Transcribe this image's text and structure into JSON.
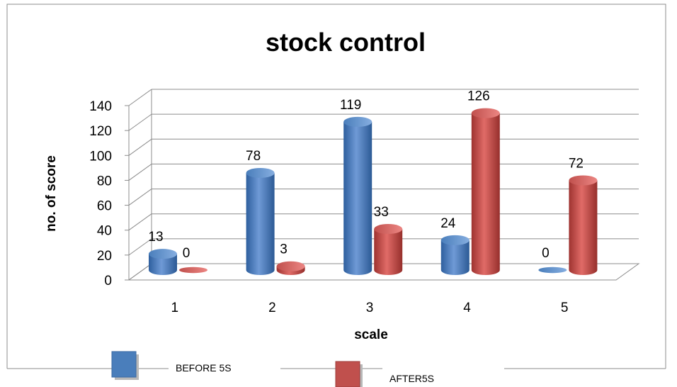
{
  "chart_data": {
    "type": "bar",
    "title": "stock control",
    "xlabel": "scale",
    "ylabel": "no. of score",
    "categories": [
      "1",
      "2",
      "3",
      "4",
      "5"
    ],
    "ylim": [
      0,
      140
    ],
    "yticks": [
      "0",
      "20",
      "40",
      "60",
      "80",
      "100",
      "120",
      "140"
    ],
    "grid": true,
    "legend": "bottom",
    "series": [
      {
        "name": "BEFORE 5S",
        "values": [
          13,
          78,
          119,
          24,
          0
        ],
        "color": "#4a7ebb"
      },
      {
        "name": "AFTER5S",
        "values": [
          0,
          3,
          33,
          126,
          72
        ],
        "color": "#c0504d"
      }
    ]
  }
}
